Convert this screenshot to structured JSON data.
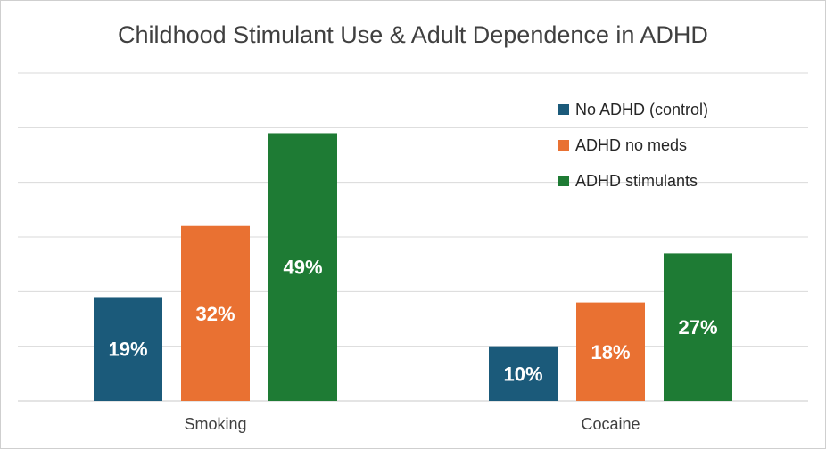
{
  "chart_data": {
    "type": "bar",
    "title": "Childhood Stimulant Use & Adult  Dependence in  ADHD",
    "categories": [
      "Smoking",
      "Cocaine"
    ],
    "series": [
      {
        "name": "No ADHD (control)",
        "color": "#1b5a7a",
        "values": [
          19,
          10
        ],
        "labels": [
          "19%",
          "10%"
        ]
      },
      {
        "name": "ADHD no meds",
        "color": "#e97132",
        "values": [
          32,
          18
        ],
        "labels": [
          "32%",
          "18%"
        ]
      },
      {
        "name": "ADHD stimulants",
        "color": "#1e7b34",
        "values": [
          49,
          27
        ],
        "labels": [
          "49%",
          "27%"
        ]
      }
    ],
    "ylim": [
      0,
      60
    ],
    "gridlines": true,
    "legend_position": "top-right",
    "xlabel": "",
    "ylabel": ""
  }
}
